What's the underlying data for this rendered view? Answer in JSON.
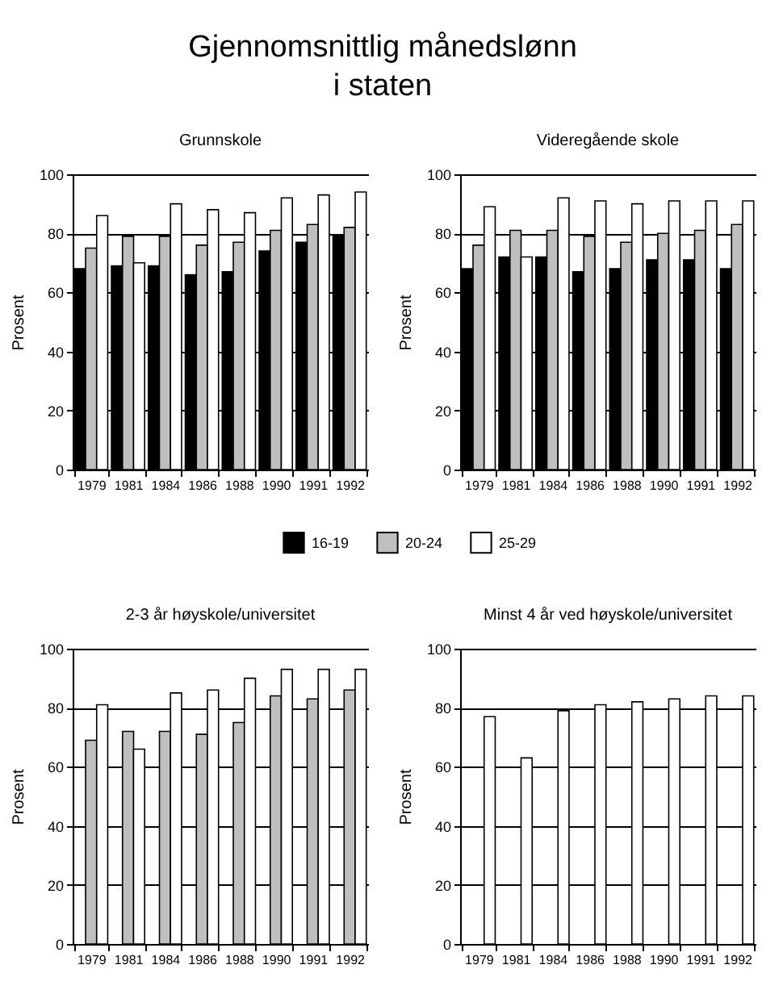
{
  "chart_data": [
    {
      "type": "other",
      "title": "Gjennomsnittlig månedslønn\ni staten"
    },
    {
      "type": "bar",
      "title": "Grunnskole",
      "ylabel": "Prosent",
      "categories": [
        "1979",
        "1981",
        "1984",
        "1986",
        "1988",
        "1990",
        "1991",
        "1992"
      ],
      "series": [
        {
          "name": "16-19",
          "color": "#000000",
          "values": [
            68,
            69,
            69,
            66,
            67,
            74,
            77,
            79
          ]
        },
        {
          "name": "20-24",
          "color": "#bfbfbf",
          "values": [
            75,
            79,
            79,
            76,
            77,
            81,
            83,
            82
          ]
        },
        {
          "name": "25-29",
          "color": "#ffffff",
          "values": [
            86,
            70,
            90,
            88,
            87,
            92,
            93,
            94
          ]
        }
      ],
      "ylim": [
        0,
        100
      ],
      "yticks": [
        0,
        20,
        40,
        60,
        80,
        100
      ],
      "grid": "y",
      "legend": "bottom"
    },
    {
      "type": "bar",
      "title": "Videregående skole",
      "ylabel": "Prosent",
      "categories": [
        "1979",
        "1981",
        "1984",
        "1986",
        "1988",
        "1990",
        "1991",
        "1992"
      ],
      "series": [
        {
          "color": "#000000",
          "values": [
            68,
            72,
            72,
            67,
            68,
            71,
            71,
            68
          ]
        },
        {
          "color": "#bfbfbf",
          "values": [
            76,
            81,
            81,
            79,
            77,
            80,
            81,
            83
          ]
        },
        {
          "color": "#ffffff",
          "values": [
            89,
            72,
            92,
            91,
            90,
            91,
            91,
            91
          ]
        }
      ],
      "ylim": [
        0,
        100
      ],
      "yticks": [
        0,
        20,
        40,
        60,
        80,
        100
      ],
      "grid": "y"
    },
    {
      "type": "bar",
      "title": "2-3 år høyskole/universitet",
      "ylabel": "Prosent",
      "categories": [
        "1979",
        "1981",
        "1984",
        "1986",
        "1988",
        "1990",
        "1991",
        "1992"
      ],
      "series": [
        {
          "values": [
            null,
            null,
            null,
            null,
            null,
            null,
            null,
            null
          ]
        },
        {
          "color": "#bfbfbf",
          "values": [
            69,
            72,
            72,
            71,
            75,
            84,
            83,
            86
          ]
        },
        {
          "color": "#ffffff",
          "values": [
            81,
            66,
            85,
            86,
            90,
            93,
            93,
            93
          ]
        }
      ],
      "ylim": [
        0,
        100
      ],
      "yticks": [
        0,
        20,
        40,
        60,
        80,
        100
      ],
      "grid": "y"
    },
    {
      "type": "bar",
      "title": "Minst 4 år ved høyskole/universitet",
      "ylabel": "Prosent",
      "categories": [
        "1979",
        "1981",
        "1984",
        "1986",
        "1988",
        "1990",
        "1991",
        "1992"
      ],
      "series": [
        {
          "values": [
            null,
            null,
            null,
            null,
            null,
            null,
            null,
            null
          ]
        },
        {
          "values": [
            null,
            null,
            null,
            null,
            null,
            null,
            null,
            null
          ]
        },
        {
          "color": "#ffffff",
          "values": [
            77,
            63,
            79,
            81,
            82,
            83,
            84,
            84
          ]
        }
      ],
      "ylim": [
        0,
        100
      ],
      "yticks": [
        0,
        20,
        40,
        60,
        80,
        100
      ],
      "grid": "y"
    }
  ]
}
